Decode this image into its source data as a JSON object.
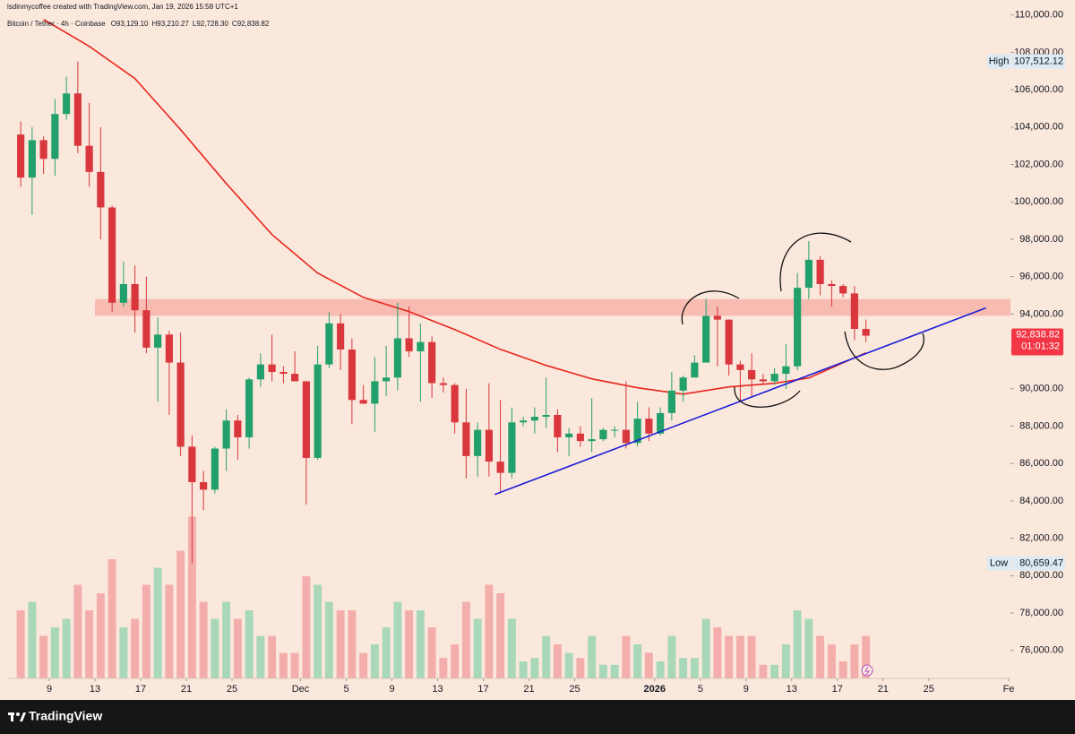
{
  "chart_data": {
    "type": "candlestick",
    "credit": "lsdinmycoffee created with TradingView.com, Jan 19, 2026 15:58 UTC+1",
    "symbol": "Bitcoin / Tether · 4h · Coinbase",
    "ohlc_labels": [
      "O93,129.10",
      "H93,210.27",
      "L92,728.30",
      "C92,838.82"
    ],
    "brand": "TradingView",
    "x": [
      "2025-11-06",
      "2025-11-07",
      "2025-11-08",
      "2025-11-09",
      "2025-11-10",
      "2025-11-11",
      "2025-11-12",
      "2025-11-13",
      "2025-11-14",
      "2025-11-15",
      "2025-11-16",
      "2025-11-17",
      "2025-11-18",
      "2025-11-19",
      "2025-11-20",
      "2025-11-21",
      "2025-11-22",
      "2025-11-23",
      "2025-11-24",
      "2025-11-25",
      "2025-11-26",
      "2025-11-27",
      "2025-11-28",
      "2025-11-29",
      "2025-11-30",
      "2025-12-01",
      "2025-12-02",
      "2025-12-03",
      "2025-12-04",
      "2025-12-05",
      "2025-12-06",
      "2025-12-07",
      "2025-12-08",
      "2025-12-09",
      "2025-12-10",
      "2025-12-11",
      "2025-12-12",
      "2025-12-13",
      "2025-12-14",
      "2025-12-15",
      "2025-12-16",
      "2025-12-17",
      "2025-12-18",
      "2025-12-19",
      "2025-12-20",
      "2025-12-21",
      "2025-12-22",
      "2025-12-23",
      "2025-12-24",
      "2025-12-25",
      "2025-12-26",
      "2025-12-27",
      "2025-12-28",
      "2025-12-29",
      "2025-12-30",
      "2025-12-31",
      "2026-01-01",
      "2026-01-02",
      "2026-01-03",
      "2026-01-04",
      "2026-01-05",
      "2026-01-06",
      "2026-01-07",
      "2026-01-08",
      "2026-01-09",
      "2026-01-10",
      "2026-01-11",
      "2026-01-12",
      "2026-01-13",
      "2026-01-14",
      "2026-01-15",
      "2026-01-16",
      "2026-01-17",
      "2026-01-18",
      "2026-01-19"
    ],
    "opens": [
      103600,
      101300,
      103300,
      102300,
      104700,
      105800,
      103000,
      101600,
      99700,
      94600,
      95600,
      94200,
      92200,
      92900,
      91400,
      86900,
      85000,
      84600,
      86800,
      88300,
      87400,
      90500,
      91300,
      90900,
      90800,
      90400,
      86300,
      91300,
      93500,
      92100,
      89400,
      89200,
      90400,
      90600,
      92700,
      92000,
      92500,
      90300,
      90200,
      88200,
      86400,
      87800,
      86100,
      85500,
      88200,
      88300,
      88500,
      88600,
      87400,
      87600,
      87200,
      87300,
      87800,
      87800,
      87100,
      88400,
      87600,
      88700,
      89900,
      90600,
      91400,
      93900,
      93700,
      91300,
      91000,
      90500,
      90400,
      90800,
      91200,
      95400,
      96900,
      95600,
      95500,
      95100,
      93200
    ],
    "highs": [
      104300,
      104000,
      103500,
      105500,
      106700,
      107512.12,
      105300,
      104000,
      99800,
      96800,
      96600,
      96000,
      93800,
      93100,
      93000,
      87500,
      85600,
      86900,
      88900,
      88600,
      90600,
      91900,
      92900,
      91200,
      92000,
      90400,
      92300,
      94100,
      94000,
      92700,
      90200,
      91700,
      92300,
      94600,
      94400,
      93500,
      92800,
      90600,
      90300,
      90000,
      88200,
      90300,
      89400,
      89000,
      88500,
      89000,
      90600,
      88900,
      87900,
      88000,
      89500,
      87900,
      88000,
      90400,
      89300,
      89000,
      89000,
      90900,
      90700,
      91800,
      94800,
      94400,
      93700,
      91500,
      91900,
      90800,
      91100,
      92400,
      96200,
      97900,
      97100,
      95800,
      95600,
      95500,
      93700
    ],
    "lows": [
      100800,
      99300,
      101500,
      101400,
      104400,
      102600,
      100800,
      98000,
      94100,
      94400,
      93000,
      91900,
      89300,
      88600,
      86400,
      80659.47,
      83500,
      84400,
      85600,
      86200,
      86800,
      90100,
      90400,
      90300,
      90400,
      83800,
      86200,
      91100,
      91000,
      88100,
      89200,
      87700,
      89600,
      89900,
      91700,
      89300,
      89500,
      89800,
      87600,
      85200,
      85300,
      85300,
      84400,
      85200,
      88000,
      87600,
      87900,
      86600,
      86400,
      86900,
      86600,
      87200,
      87400,
      86800,
      86900,
      87200,
      87500,
      88300,
      89300,
      90600,
      91400,
      91200,
      90700,
      89300,
      89600,
      90200,
      90200,
      90000,
      91000,
      94800,
      95000,
      94400,
      94900,
      92600,
      92500
    ],
    "closes": [
      101300,
      103300,
      102300,
      104700,
      105800,
      103000,
      101600,
      99700,
      94600,
      95600,
      94200,
      92200,
      92900,
      91400,
      86900,
      85000,
      84600,
      86800,
      88300,
      87400,
      90500,
      91300,
      90900,
      90800,
      90400,
      86300,
      91300,
      93500,
      92100,
      89400,
      89200,
      90400,
      90600,
      92700,
      92000,
      92500,
      90300,
      90200,
      88200,
      86400,
      87800,
      86100,
      85500,
      88200,
      88300,
      88500,
      88600,
      87400,
      87600,
      87200,
      87300,
      87800,
      87800,
      87100,
      88400,
      87600,
      88700,
      89900,
      90600,
      91400,
      93900,
      93700,
      91300,
      91000,
      90500,
      90400,
      90800,
      91200,
      95400,
      96900,
      95600,
      95500,
      95100,
      93200,
      92838.82
    ],
    "volumes": [
      40,
      45,
      25,
      30,
      35,
      55,
      40,
      50,
      70,
      30,
      35,
      55,
      65,
      55,
      75,
      95,
      45,
      35,
      45,
      35,
      40,
      25,
      25,
      15,
      15,
      60,
      55,
      45,
      40,
      40,
      15,
      20,
      30,
      45,
      40,
      40,
      30,
      12,
      20,
      45,
      35,
      55,
      50,
      35,
      10,
      12,
      25,
      20,
      15,
      12,
      25,
      8,
      8,
      25,
      20,
      15,
      10,
      25,
      12,
      12,
      35,
      30,
      25,
      25,
      25,
      8,
      8,
      20,
      40,
      35,
      25,
      20,
      10,
      20,
      25
    ],
    "vlim": [
      0,
      100
    ],
    "up_color": "#22a06b",
    "down_color": "#d9363e",
    "up_volume_color": "#a8d8b9",
    "down_volume_color": "#f3adab",
    "ylim": [
      74500,
      110800
    ],
    "yticks": [
      {
        "value": 76000,
        "label": "76,000.00"
      },
      {
        "value": 78000,
        "label": "78,000.00"
      },
      {
        "value": 80000,
        "label": "80,000.00"
      },
      {
        "value": 82000,
        "label": "82,000.00"
      },
      {
        "value": 84000,
        "label": "84,000.00"
      },
      {
        "value": 86000,
        "label": "86,000.00"
      },
      {
        "value": 88000,
        "label": "88,000.00"
      },
      {
        "value": 90000,
        "label": "90,000.00"
      },
      {
        "value": 92000,
        "label": "92,000.00"
      },
      {
        "value": 94000,
        "label": "94,000.00"
      },
      {
        "value": 96000,
        "label": "96,000.00"
      },
      {
        "value": 98000,
        "label": "98,000.00"
      },
      {
        "value": 100000,
        "label": "100,000.00"
      },
      {
        "value": 102000,
        "label": "102,000.00"
      },
      {
        "value": 104000,
        "label": "104,000.00"
      },
      {
        "value": 106000,
        "label": "106,000.00"
      },
      {
        "value": 108000,
        "label": "108,000.00"
      },
      {
        "value": 110000,
        "label": "110,000.00"
      }
    ],
    "xlim": [
      "2025-11-05",
      "2026-02-01"
    ],
    "xticks": [
      {
        "value": "2025-11-09",
        "label": "9"
      },
      {
        "value": "2025-11-13",
        "label": "13"
      },
      {
        "value": "2025-11-17",
        "label": "17"
      },
      {
        "value": "2025-11-21",
        "label": "21"
      },
      {
        "value": "2025-11-25",
        "label": "25"
      },
      {
        "value": "2025-12-01",
        "label": "Dec"
      },
      {
        "value": "2025-12-05",
        "label": "5"
      },
      {
        "value": "2025-12-09",
        "label": "9"
      },
      {
        "value": "2025-12-13",
        "label": "13"
      },
      {
        "value": "2025-12-17",
        "label": "17"
      },
      {
        "value": "2025-12-21",
        "label": "21"
      },
      {
        "value": "2025-12-25",
        "label": "25"
      },
      {
        "value": "2026-01-01",
        "label": "2026",
        "bold": true
      },
      {
        "value": "2026-01-05",
        "label": "5"
      },
      {
        "value": "2026-01-09",
        "label": "9"
      },
      {
        "value": "2026-01-13",
        "label": "13"
      },
      {
        "value": "2026-01-17",
        "label": "17"
      },
      {
        "value": "2026-01-21",
        "label": "21"
      },
      {
        "value": "2026-01-25",
        "label": "25"
      },
      {
        "value": "2026-02-01",
        "label": "Fe"
      }
    ],
    "ma": {
      "color": "#e8261c",
      "x": [
        "2025-11-08",
        "2025-11-12",
        "2025-11-16",
        "2025-11-20",
        "2025-11-24",
        "2025-11-28",
        "2025-12-02",
        "2025-12-06",
        "2025-12-10",
        "2025-12-14",
        "2025-12-18",
        "2025-12-22",
        "2025-12-26",
        "2025-12-30",
        "2026-01-03",
        "2026-01-07",
        "2026-01-11",
        "2026-01-14",
        "2026-01-17",
        "2026-01-19"
      ],
      "values": [
        109760,
        108320,
        106600,
        103860,
        100980,
        98250,
        96190,
        94890,
        94130,
        93170,
        92110,
        91250,
        90530,
        90050,
        89710,
        90100,
        90290,
        90580,
        91390,
        91920
      ]
    },
    "trendline": {
      "color": "#1c1cd6",
      "x": [
        "2025-12-18",
        "2026-01-30"
      ],
      "values": [
        84340,
        94320
      ]
    },
    "zone": {
      "color": "#f7b3aa",
      "start": "2025-11-13",
      "range": [
        93900,
        94800
      ]
    },
    "high": {
      "label": "High",
      "value": 107512.12,
      "value_label": "107,512.12"
    },
    "low": {
      "label": "Low",
      "value": 80659.47,
      "value_label": "80,659.47"
    },
    "last": {
      "value": 92838.82,
      "value_label": "92,838.82",
      "countdown": "01:01:32",
      "color": "#f23645"
    }
  }
}
